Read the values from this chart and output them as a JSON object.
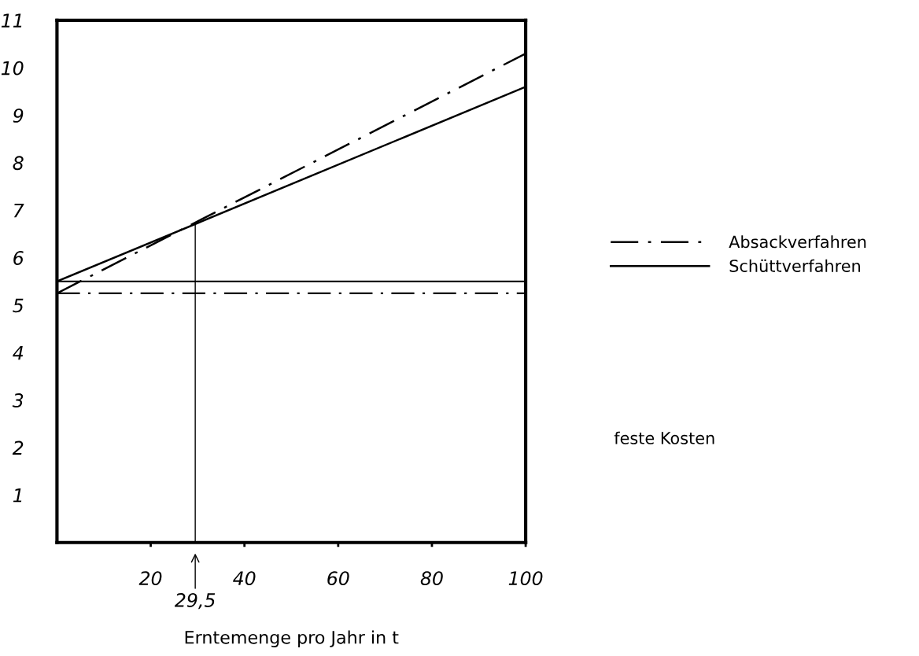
{
  "chart_data": {
    "type": "line",
    "xlabel": "Erntemenge pro Jahr in t",
    "x": [
      0,
      100
    ],
    "series": [
      {
        "name": "Absackverfahren",
        "color": "#000000",
        "values": [
          5.25,
          10.3
        ],
        "line_style": "dashdot"
      },
      {
        "name": "Schüttverfahren",
        "color": "#000000",
        "values": [
          5.5,
          9.6
        ],
        "line_style": "solid"
      },
      {
        "type": "line",
        "color": "#000000",
        "x": [
          29.5,
          29.5
        ],
        "values": [
          0,
          6.72
        ],
        "line_style": "solid"
      }
    ],
    "ref_lines": [
      {
        "axis": "y",
        "value": 5.25,
        "color": "#000000",
        "line_style": "dashdot"
      },
      {
        "axis": "y",
        "value": 5.5,
        "color": "#000000",
        "line_style": "solid"
      }
    ],
    "annotations": [
      {
        "text": "29,5",
        "x": 29.5,
        "y": 0
      },
      "feste Kosten"
    ],
    "xlim": [
      0,
      100
    ],
    "xticks": [
      20,
      40,
      60,
      80,
      100
    ],
    "ylim": [
      0,
      11
    ],
    "yticks": [
      1,
      2,
      3,
      4,
      5,
      6,
      7,
      8,
      9,
      10,
      11
    ],
    "grid": false,
    "legend": "right",
    "marker": "none"
  }
}
